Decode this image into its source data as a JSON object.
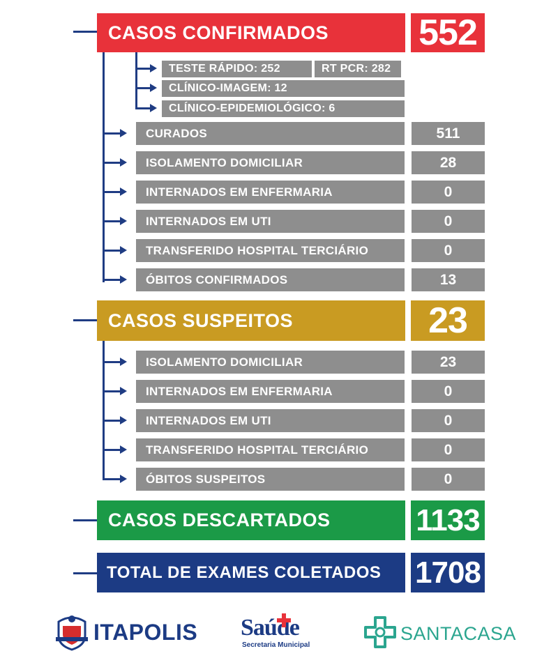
{
  "colors": {
    "confirmed": "#e8323a",
    "suspected": "#c99b22",
    "discarded": "#1b9a47",
    "total": "#1c3b84",
    "row": "#8e8e8e",
    "line": "#1f3c83"
  },
  "confirmados": {
    "label": "CASOS CONFIRMADOS",
    "value": "552",
    "sub": {
      "teste_rapido": "TESTE RÁPIDO: 252",
      "rt_pcr": "RT PCR: 282",
      "clinico_imagem": "CLÍNICO-IMAGEM:  12",
      "clinico_epidemiologico": "CLÍNICO-EPIDEMIOLÓGICO:  6"
    },
    "rows": [
      {
        "label": "CURADOS",
        "value": "511"
      },
      {
        "label": "ISOLAMENTO DOMICILIAR",
        "value": "28"
      },
      {
        "label": "INTERNADOS EM ENFERMARIA",
        "value": "0"
      },
      {
        "label": "INTERNADOS EM UTI",
        "value": "0"
      },
      {
        "label": "TRANSFERIDO HOSPITAL TERCIÁRIO",
        "value": "0"
      },
      {
        "label": "ÓBITOS CONFIRMADOS",
        "value": "13"
      }
    ]
  },
  "suspeitos": {
    "label": "CASOS SUSPEITOS",
    "value": "23",
    "rows": [
      {
        "label": "ISOLAMENTO DOMICILIAR",
        "value": "23"
      },
      {
        "label": "INTERNADOS EM ENFERMARIA",
        "value": "0"
      },
      {
        "label": "INTERNADOS EM UTI",
        "value": "0"
      },
      {
        "label": "TRANSFERIDO HOSPITAL TERCIÁRIO",
        "value": "0"
      },
      {
        "label": "ÓBITOS SUSPEITOS",
        "value": "0"
      }
    ]
  },
  "descartados": {
    "label": "CASOS DESCARTADOS",
    "value": "1133"
  },
  "total": {
    "label": "TOTAL DE EXAMES COLETADOS",
    "value": "1708"
  },
  "logos": {
    "itapolis": "ITAPOLIS",
    "saude": "Saúde",
    "saude_sub": "Secretaria Municipal",
    "santacasa": "SANTACASA"
  }
}
